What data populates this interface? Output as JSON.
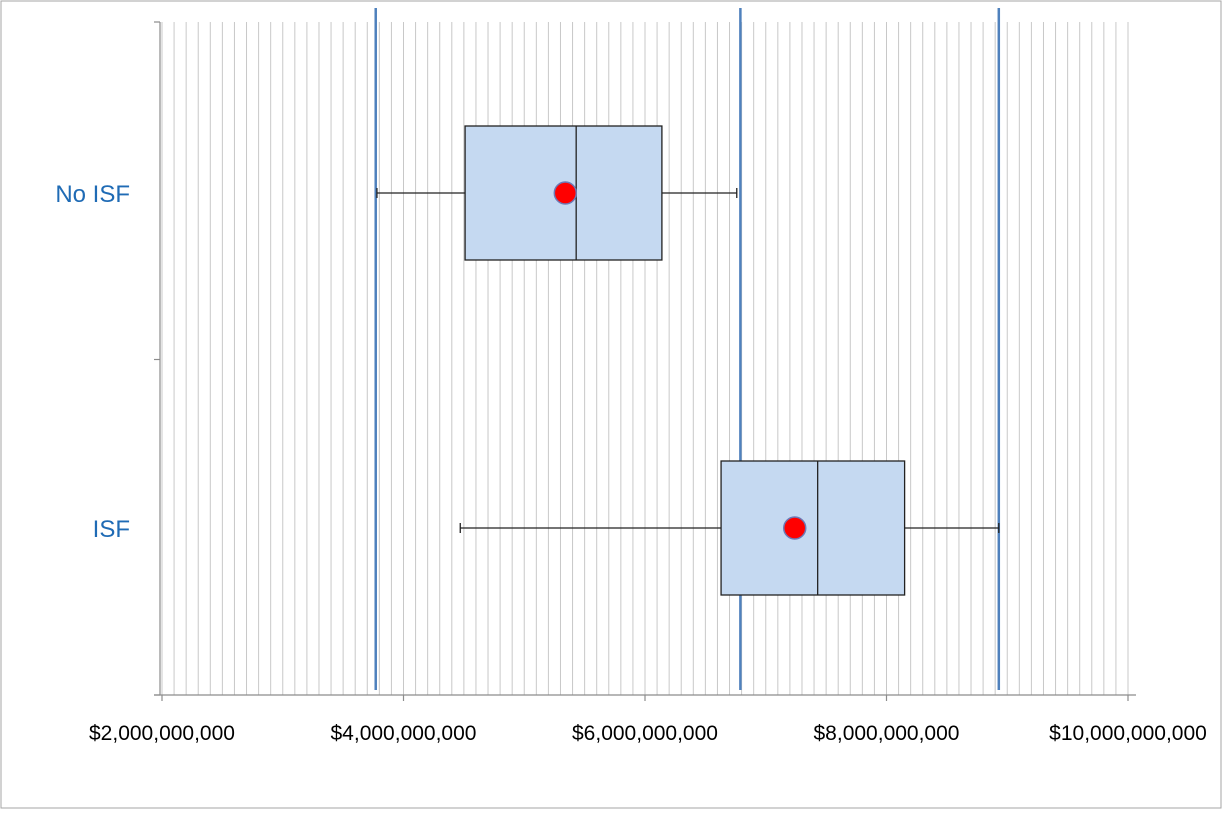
{
  "chart_data": {
    "type": "box",
    "title": "",
    "xlabel": "",
    "ylabel": "",
    "xlim": [
      2000000000,
      10000000000
    ],
    "x_tick_values": [
      2000000000,
      4000000000,
      6000000000,
      8000000000,
      10000000000
    ],
    "x_tick_labels": [
      "$2,000,000,000",
      "$4,000,000,000",
      "$6,000,000,000",
      "$8,000,000,000",
      "$10,000,000,000"
    ],
    "minor_grid_step": 100000000,
    "grid": true,
    "categories": [
      "No ISF",
      "ISF"
    ],
    "boxes": [
      {
        "category": "No ISF",
        "whisker_low": 3780000000,
        "q1": 4510000000,
        "median": 5430000000,
        "q3": 6140000000,
        "whisker_high": 6760000000,
        "mean": 5340000000
      },
      {
        "category": "ISF",
        "whisker_low": 4470000000,
        "q1": 6630000000,
        "median": 7430000000,
        "q3": 8150000000,
        "whisker_high": 8930000000,
        "mean": 7240000000
      }
    ],
    "reference_lines": [
      3770000000,
      6790000000,
      8930000000
    ],
    "colors": {
      "box_fill": "#c5d9f1",
      "box_stroke": "#222222",
      "mean_fill": "#ff0000",
      "mean_stroke": "#6d79b5",
      "reference_line": "#4f81bd",
      "category_label": "#1f6bb5",
      "grid": "#c8c8c8",
      "axis": "#8c8c8c"
    }
  }
}
